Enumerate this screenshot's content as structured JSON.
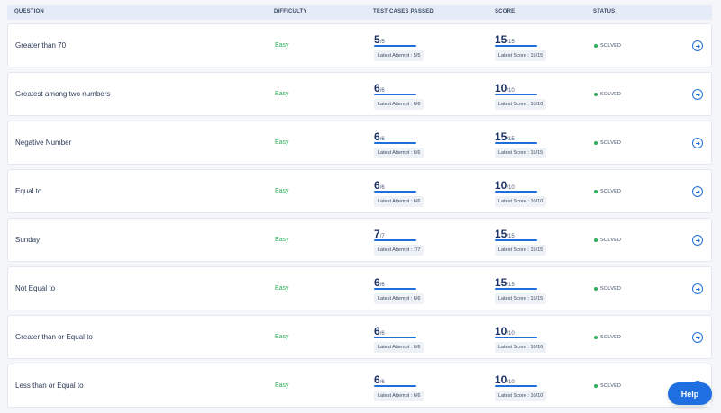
{
  "columns": {
    "question": "QUESTION",
    "difficulty": "DIFFICULTY",
    "tests": "TEST CASES PASSED",
    "score": "SCORE",
    "status": "STATUS"
  },
  "rows": [
    {
      "title": "Greater than 70",
      "difficulty": "Easy",
      "passed": "5",
      "total": "/5",
      "attempt": "Latest Attempt : 5/5",
      "score": "15",
      "max": "/15",
      "latest_score": "Latest Score : 15/15",
      "status": "SOLVED"
    },
    {
      "title": "Greatest among two numbers",
      "difficulty": "Easy",
      "passed": "6",
      "total": "/6",
      "attempt": "Latest Attempt : 6/6",
      "score": "10",
      "max": "/10",
      "latest_score": "Latest Score : 10/10",
      "status": "SOLVED"
    },
    {
      "title": "Negative Number",
      "difficulty": "Easy",
      "passed": "6",
      "total": "/6",
      "attempt": "Latest Attempt : 6/6",
      "score": "15",
      "max": "/15",
      "latest_score": "Latest Score : 15/15",
      "status": "SOLVED"
    },
    {
      "title": "Equal to",
      "difficulty": "Easy",
      "passed": "6",
      "total": "/6",
      "attempt": "Latest Attempt : 6/6",
      "score": "10",
      "max": "/10",
      "latest_score": "Latest Score : 10/10",
      "status": "SOLVED"
    },
    {
      "title": "Sunday",
      "difficulty": "Easy",
      "passed": "7",
      "total": "/7",
      "attempt": "Latest Attempt : 7/7",
      "score": "15",
      "max": "/15",
      "latest_score": "Latest Score : 15/15",
      "status": "SOLVED"
    },
    {
      "title": "Not Equal to",
      "difficulty": "Easy",
      "passed": "6",
      "total": "/6",
      "attempt": "Latest Attempt : 6/6",
      "score": "15",
      "max": "/15",
      "latest_score": "Latest Score : 15/15",
      "status": "SOLVED"
    },
    {
      "title": "Greater than or Equal to",
      "difficulty": "Easy",
      "passed": "6",
      "total": "/6",
      "attempt": "Latest Attempt : 6/6",
      "score": "10",
      "max": "/10",
      "latest_score": "Latest Score : 10/10",
      "status": "SOLVED"
    },
    {
      "title": "Less than or Equal to",
      "difficulty": "Easy",
      "passed": "6",
      "total": "/6",
      "attempt": "Latest Attempt : 6/6",
      "score": "10",
      "max": "/10",
      "latest_score": "Latest Score : 10/10",
      "status": "SOLVED"
    }
  ],
  "help": {
    "label": "Help"
  },
  "icons": {
    "open": "arrow-right-circle-icon",
    "status": "status-dot-icon"
  },
  "colors": {
    "accent": "#1e6fd9",
    "easy": "#2fae5a",
    "solved_dot": "#2fae5a",
    "header_bg": "#e6ecf7"
  }
}
